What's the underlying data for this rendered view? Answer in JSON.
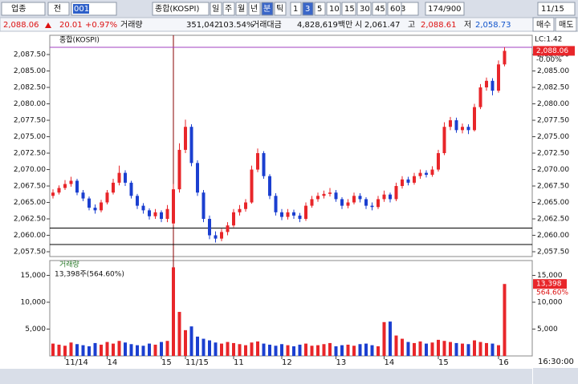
{
  "toolbar": {
    "market": "업종",
    "scope": "전",
    "code": "001",
    "name": "종합(KOSPI)",
    "periods": [
      "일",
      "주",
      "월",
      "년",
      "분",
      "틱"
    ],
    "active_period": "분",
    "minutes": [
      "1",
      "3",
      "5",
      "10",
      "15",
      "30",
      "45",
      "60"
    ],
    "active_minute": "3",
    "count": "3",
    "range": "174/900",
    "date": "11/15"
  },
  "info": {
    "price": "2,088.06",
    "change": "20.01",
    "change_pct": "+0.97%",
    "volume_label": "거래량",
    "volume": "351,042",
    "volume_ratio": "103.54%",
    "amount_label": "거래대금",
    "amount": "4,828,619백만",
    "open_label": "시",
    "open": "2,061.47",
    "high_label": "고",
    "high": "2,088.61",
    "low_label": "저",
    "low": "2,058.73"
  },
  "side_buttons": [
    "매수",
    "매도"
  ],
  "price_panel": {
    "legend": "종합(KOSPI)",
    "lc": "LC:1.42",
    "last_label": "2,088.06",
    "last_value": 2088.06,
    "last_pct": "-0.00%",
    "ylim": [
      2056.77,
      2090.43
    ],
    "yticks": [
      {
        "value": 2057.5,
        "label": "2,057.50"
      },
      {
        "value": 2060,
        "label": "2,060.00"
      },
      {
        "value": 2062.5,
        "label": "2,062.50"
      },
      {
        "value": 2065,
        "label": "2,065.00"
      },
      {
        "value": 2067.5,
        "label": "2,067.50"
      },
      {
        "value": 2070,
        "label": "2,070.00"
      },
      {
        "value": 2072.5,
        "label": "2,072.50"
      },
      {
        "value": 2075,
        "label": "2,075.00"
      },
      {
        "value": 2077.5,
        "label": "2,077.50"
      },
      {
        "value": 2080,
        "label": "2,080.00"
      },
      {
        "value": 2082.5,
        "label": "2,082.50"
      },
      {
        "value": 2085,
        "label": "2,085.00"
      },
      {
        "value": 2087.5,
        "label": "2,087.50"
      }
    ],
    "hlines": [
      2061.1,
      2058.6
    ],
    "high_line": 2088.6,
    "up_color": "#e8262a",
    "down_color": "#1b3fd0",
    "candles": [
      [
        2066.0,
        2067.0,
        2065.6,
        2066.5
      ],
      [
        2066.5,
        2067.6,
        2066.2,
        2067.2
      ],
      [
        2067.2,
        2068.4,
        2066.9,
        2067.8
      ],
      [
        2067.8,
        2068.9,
        2067.4,
        2068.3
      ],
      [
        2068.3,
        2068.6,
        2066.1,
        2066.5
      ],
      [
        2066.5,
        2066.9,
        2065.2,
        2065.6
      ],
      [
        2065.6,
        2065.9,
        2063.8,
        2064.2
      ],
      [
        2064.2,
        2064.7,
        2063.3,
        2063.8
      ],
      [
        2063.8,
        2065.4,
        2063.5,
        2065.0
      ],
      [
        2065.0,
        2066.9,
        2064.7,
        2066.5
      ],
      [
        2066.5,
        2068.6,
        2066.2,
        2068.0
      ],
      [
        2068.0,
        2070.6,
        2067.6,
        2069.5
      ],
      [
        2069.5,
        2069.9,
        2067.5,
        2068.0
      ],
      [
        2068.0,
        2068.3,
        2065.6,
        2066.0
      ],
      [
        2066.0,
        2066.3,
        2064.0,
        2064.5
      ],
      [
        2064.5,
        2064.9,
        2063.3,
        2063.8
      ],
      [
        2063.8,
        2064.1,
        2062.4,
        2062.9
      ],
      [
        2062.9,
        2064.0,
        2062.5,
        2063.5
      ],
      [
        2063.5,
        2063.8,
        2062.0,
        2062.5
      ],
      [
        2062.5,
        2064.6,
        2062.0,
        2064.0
      ],
      [
        2061.8,
        2067.8,
        2061.5,
        2067.0
      ],
      [
        2067.0,
        2074.0,
        2066.5,
        2073.0
      ],
      [
        2073.0,
        2077.6,
        2072.5,
        2076.5
      ],
      [
        2076.5,
        2076.9,
        2070.5,
        2071.0
      ],
      [
        2071.0,
        2071.4,
        2066.0,
        2066.5
      ],
      [
        2066.5,
        2066.9,
        2062.0,
        2062.5
      ],
      [
        2062.5,
        2063.0,
        2059.4,
        2060.0
      ],
      [
        2060.0,
        2060.6,
        2058.9,
        2059.5
      ],
      [
        2059.5,
        2061.0,
        2059.1,
        2060.5
      ],
      [
        2060.5,
        2062.0,
        2060.0,
        2061.5
      ],
      [
        2061.5,
        2064.0,
        2061.2,
        2063.5
      ],
      [
        2063.5,
        2064.6,
        2063.0,
        2064.0
      ],
      [
        2064.0,
        2065.5,
        2063.6,
        2065.0
      ],
      [
        2065.0,
        2070.6,
        2064.8,
        2070.0
      ],
      [
        2070.0,
        2073.2,
        2069.6,
        2072.5
      ],
      [
        2072.5,
        2072.8,
        2068.6,
        2069.0
      ],
      [
        2069.0,
        2069.3,
        2065.5,
        2066.0
      ],
      [
        2066.0,
        2066.4,
        2063.0,
        2063.5
      ],
      [
        2063.5,
        2064.0,
        2062.3,
        2062.8
      ],
      [
        2062.8,
        2064.0,
        2062.4,
        2063.5
      ],
      [
        2063.5,
        2063.9,
        2062.5,
        2063.0
      ],
      [
        2063.0,
        2063.4,
        2062.0,
        2062.5
      ],
      [
        2062.5,
        2065.0,
        2062.2,
        2064.5
      ],
      [
        2064.5,
        2066.0,
        2064.2,
        2065.5
      ],
      [
        2065.5,
        2066.5,
        2065.1,
        2066.0
      ],
      [
        2066.0,
        2066.8,
        2065.6,
        2066.3
      ],
      [
        2066.3,
        2067.2,
        2065.9,
        2066.5
      ],
      [
        2066.5,
        2066.9,
        2065.1,
        2065.5
      ],
      [
        2065.5,
        2065.8,
        2064.0,
        2064.5
      ],
      [
        2064.5,
        2065.5,
        2064.1,
        2065.0
      ],
      [
        2065.0,
        2066.5,
        2064.7,
        2066.0
      ],
      [
        2066.0,
        2066.4,
        2065.0,
        2065.5
      ],
      [
        2065.5,
        2065.8,
        2064.0,
        2064.5
      ],
      [
        2064.5,
        2065.0,
        2063.8,
        2064.3
      ],
      [
        2064.3,
        2066.0,
        2064.0,
        2065.5
      ],
      [
        2065.5,
        2066.8,
        2065.1,
        2066.2
      ],
      [
        2066.2,
        2066.5,
        2065.0,
        2065.5
      ],
      [
        2065.5,
        2068.0,
        2065.2,
        2067.5
      ],
      [
        2067.5,
        2069.0,
        2067.1,
        2068.5
      ],
      [
        2068.5,
        2068.9,
        2067.6,
        2068.0
      ],
      [
        2068.0,
        2069.5,
        2067.7,
        2069.0
      ],
      [
        2069.0,
        2070.0,
        2068.6,
        2069.5
      ],
      [
        2069.5,
        2069.9,
        2068.8,
        2069.2
      ],
      [
        2069.2,
        2070.5,
        2068.9,
        2070.0
      ],
      [
        2070.0,
        2073.0,
        2069.7,
        2072.5
      ],
      [
        2072.5,
        2077.2,
        2072.2,
        2076.5
      ],
      [
        2076.5,
        2078.0,
        2076.0,
        2077.5
      ],
      [
        2077.5,
        2077.9,
        2075.6,
        2076.0
      ],
      [
        2076.0,
        2077.0,
        2075.5,
        2076.5
      ],
      [
        2076.5,
        2076.9,
        2075.4,
        2076.0
      ],
      [
        2076.0,
        2080.0,
        2075.8,
        2079.5
      ],
      [
        2079.5,
        2083.0,
        2079.2,
        2082.5
      ],
      [
        2082.5,
        2084.0,
        2082.0,
        2083.5
      ],
      [
        2083.5,
        2083.9,
        2081.3,
        2082.0
      ],
      [
        2082.0,
        2086.6,
        2081.7,
        2086.0
      ],
      [
        2086.0,
        2088.61,
        2085.7,
        2088.06
      ]
    ]
  },
  "volume_panel": {
    "legend": "거래량",
    "info": "13,398주(564.60%)",
    "last_label": "13,398",
    "last_value": 13398,
    "last_pct": "564.60%",
    "ylim": [
      0,
      17760
    ],
    "yticks": [
      {
        "value": 5000,
        "label": "5,000"
      },
      {
        "value": 10000,
        "label": "10,000"
      },
      {
        "value": 15000,
        "label": "15,000"
      }
    ],
    "values": [
      2300,
      2100,
      1900,
      2500,
      2200,
      2000,
      1800,
      2400,
      2100,
      2600,
      2300,
      2800,
      2500,
      2200,
      2000,
      1900,
      2300,
      2100,
      2600,
      2800,
      16500,
      8200,
      4800,
      5500,
      3600,
      3200,
      2900,
      2500,
      2300,
      2600,
      2400,
      2200,
      2000,
      2500,
      2700,
      2300,
      2100,
      1900,
      2200,
      2000,
      1800,
      2100,
      2300,
      1900,
      2000,
      2200,
      2400,
      1800,
      2000,
      2100,
      1900,
      2200,
      2300,
      2000,
      1800,
      6300,
      6400,
      3800,
      3200,
      2600,
      2400,
      2700,
      2300,
      2500,
      3000,
      2800,
      2600,
      2400,
      2300,
      2200,
      2900,
      2600,
      2400,
      2300,
      2000,
      13398
    ]
  },
  "times": [
    null,
    null,
    "11/14",
    null,
    null,
    null,
    null,
    null,
    null,
    "14",
    null,
    null,
    null,
    null,
    null,
    null,
    null,
    null,
    "15",
    null,
    null,
    null,
    "11/15",
    null,
    null,
    null,
    null,
    null,
    null,
    null,
    "11",
    null,
    null,
    null,
    null,
    null,
    null,
    null,
    "12",
    null,
    null,
    null,
    null,
    null,
    null,
    null,
    null,
    "13",
    null,
    null,
    null,
    null,
    null,
    null,
    null,
    "14",
    null,
    null,
    null,
    null,
    null,
    null,
    null,
    null,
    "15",
    null,
    null,
    null,
    null,
    null,
    null,
    null,
    null,
    null,
    "16",
    null
  ],
  "clock": "16:30:00"
}
